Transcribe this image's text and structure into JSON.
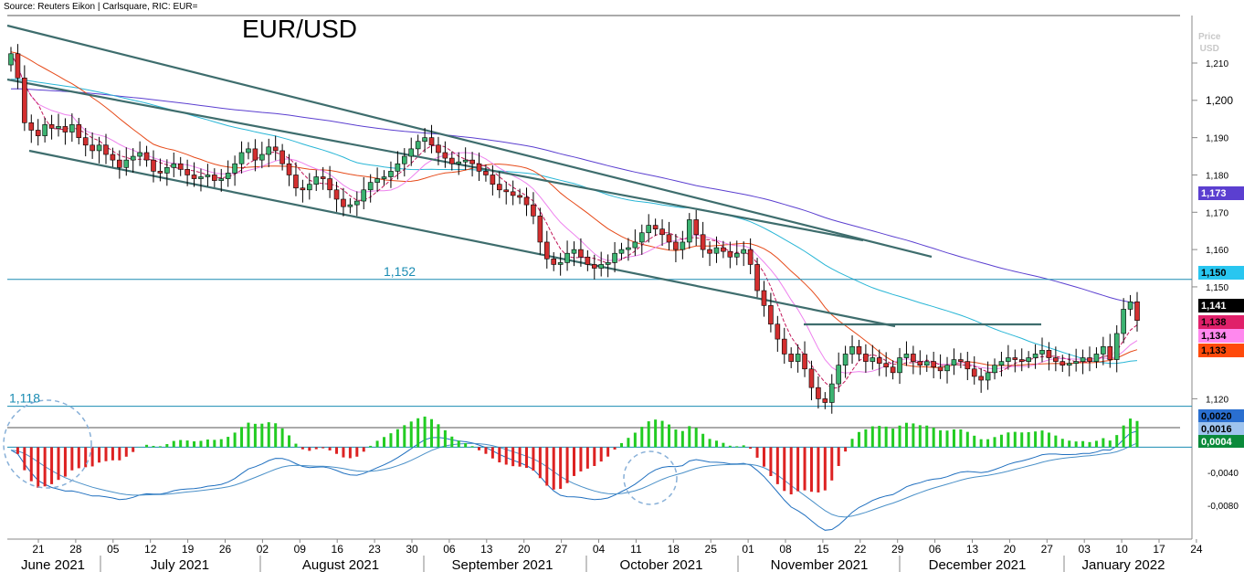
{
  "source": "Source: Reuters Eikon | Carlsquare, RIC: EUR=",
  "title": "EUR/USD",
  "price_axis_label": [
    "Price",
    "USD"
  ],
  "colors": {
    "up": "#3cb371",
    "down": "#d32f2f",
    "channel": "#3e6d6d",
    "sma5": "#c2185b",
    "sma10": "#ee82ee",
    "sma20": "#e64a19",
    "sma50": "#29b6d6",
    "sma100": "#5b3fd0",
    "level": "#1a8cb3",
    "macd": "#1f6fbf",
    "signal": "#2a6fb0",
    "hist_up": "#22cc22",
    "hist_down": "#dd2222"
  },
  "chart_data": [
    {
      "type": "candlestick",
      "title": "EUR/USD",
      "ylim": [
        1.113,
        1.222
      ],
      "yticks": [
        "1,210",
        "1,200",
        "1,190",
        "1,180",
        "1,170",
        "1,160",
        "1,150",
        "1,120"
      ],
      "yticks_major": [
        "1,200"
      ],
      "months": [
        "June 2021",
        "July 2021",
        "August 2021",
        "September 2021",
        "October 2021",
        "November 2021",
        "December 2021",
        "January 2022"
      ],
      "days": [
        "21",
        "28",
        "05",
        "12",
        "19",
        "26",
        "02",
        "09",
        "16",
        "23",
        "30",
        "06",
        "13",
        "20",
        "27",
        "04",
        "11",
        "18",
        "25",
        "01",
        "08",
        "15",
        "22",
        "29",
        "06",
        "13",
        "20",
        "27",
        "03",
        "10",
        "17",
        "24"
      ],
      "levels": [
        {
          "label": "1,152",
          "value": 1.152
        },
        {
          "label": "1,118",
          "value": 1.118
        }
      ],
      "last_values": [
        {
          "label": "1,173",
          "bg": "#5b3fd0",
          "fg": "#ffffff"
        },
        {
          "label": "1,150",
          "bg": "#29c6f0",
          "fg": "#000000"
        },
        {
          "label": "1,141",
          "bg": "#000000",
          "fg": "#ffffff"
        },
        {
          "label": "1,138",
          "bg": "#e0206a",
          "fg": "#000000"
        },
        {
          "label": "1,134",
          "bg": "#ff88ee",
          "fg": "#000000"
        },
        {
          "label": "1,133",
          "bg": "#ff4a0a",
          "fg": "#000000"
        }
      ],
      "closes": [
        1.2125,
        1.206,
        1.194,
        1.192,
        1.1905,
        1.1935,
        1.1925,
        1.193,
        1.1915,
        1.1935,
        1.19,
        1.188,
        1.1865,
        1.188,
        1.1855,
        1.184,
        1.182,
        1.184,
        1.185,
        1.186,
        1.184,
        1.181,
        1.1805,
        1.182,
        1.183,
        1.1815,
        1.18,
        1.179,
        1.1795,
        1.18,
        1.1785,
        1.179,
        1.1805,
        1.183,
        1.186,
        1.187,
        1.184,
        1.1855,
        1.1875,
        1.1865,
        1.183,
        1.18,
        1.1765,
        1.176,
        1.1775,
        1.1795,
        1.179,
        1.176,
        1.1735,
        1.1715,
        1.172,
        1.173,
        1.176,
        1.178,
        1.179,
        1.1795,
        1.181,
        1.183,
        1.185,
        1.187,
        1.189,
        1.19,
        1.188,
        1.186,
        1.1845,
        1.183,
        1.1835,
        1.184,
        1.183,
        1.181,
        1.18,
        1.1775,
        1.176,
        1.1755,
        1.1745,
        1.174,
        1.172,
        1.169,
        1.162,
        1.1575,
        1.156,
        1.1565,
        1.159,
        1.16,
        1.158,
        1.156,
        1.155,
        1.156,
        1.1565,
        1.159,
        1.16,
        1.1605,
        1.162,
        1.1645,
        1.1665,
        1.1655,
        1.164,
        1.162,
        1.16,
        1.162,
        1.168,
        1.164,
        1.16,
        1.159,
        1.1605,
        1.1595,
        1.158,
        1.159,
        1.16,
        1.156,
        1.149,
        1.145,
        1.14,
        1.136,
        1.132,
        1.13,
        1.132,
        1.128,
        1.123,
        1.12,
        1.119,
        1.124,
        1.129,
        1.132,
        1.134,
        1.132,
        1.13,
        1.131,
        1.1295,
        1.1285,
        1.127,
        1.131,
        1.132,
        1.13,
        1.129,
        1.13,
        1.1285,
        1.1275,
        1.129,
        1.1305,
        1.13,
        1.128,
        1.126,
        1.125,
        1.127,
        1.129,
        1.13,
        1.131,
        1.1305,
        1.13,
        1.131,
        1.132,
        1.133,
        1.131,
        1.13,
        1.129,
        1.1295,
        1.13,
        1.131,
        1.13,
        1.132,
        1.134,
        1.1305,
        1.1375,
        1.144,
        1.146,
        1.141
      ]
    },
    {
      "type": "macd",
      "ylim": [
        -0.0118,
        0.0028
      ],
      "yticks": [
        "0,0020",
        "0,0016",
        "0,0004",
        "-0,0040",
        "-0,0080"
      ],
      "last_values": [
        {
          "label": "0,0020",
          "bg": "#2a6fd0",
          "fg": "#000000"
        },
        {
          "label": "0,0016",
          "bg": "#9fc4ee",
          "fg": "#000000"
        },
        {
          "label": "0,0004",
          "bg": "#0a8a3a",
          "fg": "#ffffff"
        }
      ]
    }
  ]
}
